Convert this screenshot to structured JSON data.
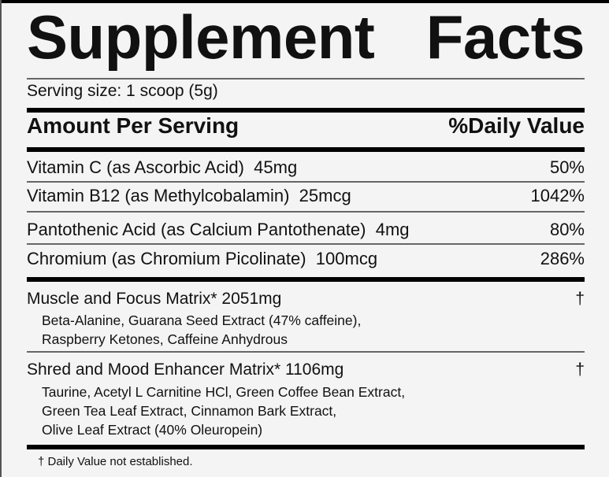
{
  "title": [
    "Supplement",
    "Facts"
  ],
  "serving_size": "Serving size: 1 scoop (5g)",
  "header": {
    "amount": "Amount Per Serving",
    "dv": "%Daily Value"
  },
  "nutrients": [
    {
      "name": "Vitamin C (as Ascorbic Acid)",
      "amount": "45mg",
      "dv": "50%"
    },
    {
      "name": "Vitamin B12 (as Methylcobalamin)",
      "amount": "25mcg",
      "dv": "1042%"
    },
    {
      "name": "Pantothenic Acid (as Calcium Pantothenate)",
      "amount": "4mg",
      "dv": "80%"
    },
    {
      "name": "Chromium (as Chromium Picolinate)",
      "amount": "100mcg",
      "dv": "286%"
    }
  ],
  "matrices": [
    {
      "name": "Muscle and Focus Matrix* 2051mg",
      "dv": "†",
      "ingredients": [
        "Beta-Alanine, Guarana Seed Extract (47% caffeine),",
        "Raspberry Ketones, Caffeine Anhydrous"
      ]
    },
    {
      "name": "Shred and Mood Enhancer Matrix* 1106mg",
      "dv": "†",
      "ingredients": [
        "Taurine, Acetyl L Carnitine HCl, Green Coffee Bean Extract,",
        "Green Tea Leaf Extract, Cinnamon Bark Extract,",
        "Olive Leaf Extract (40% Oleuropein)"
      ]
    }
  ],
  "footnote": "† Daily Value not established."
}
